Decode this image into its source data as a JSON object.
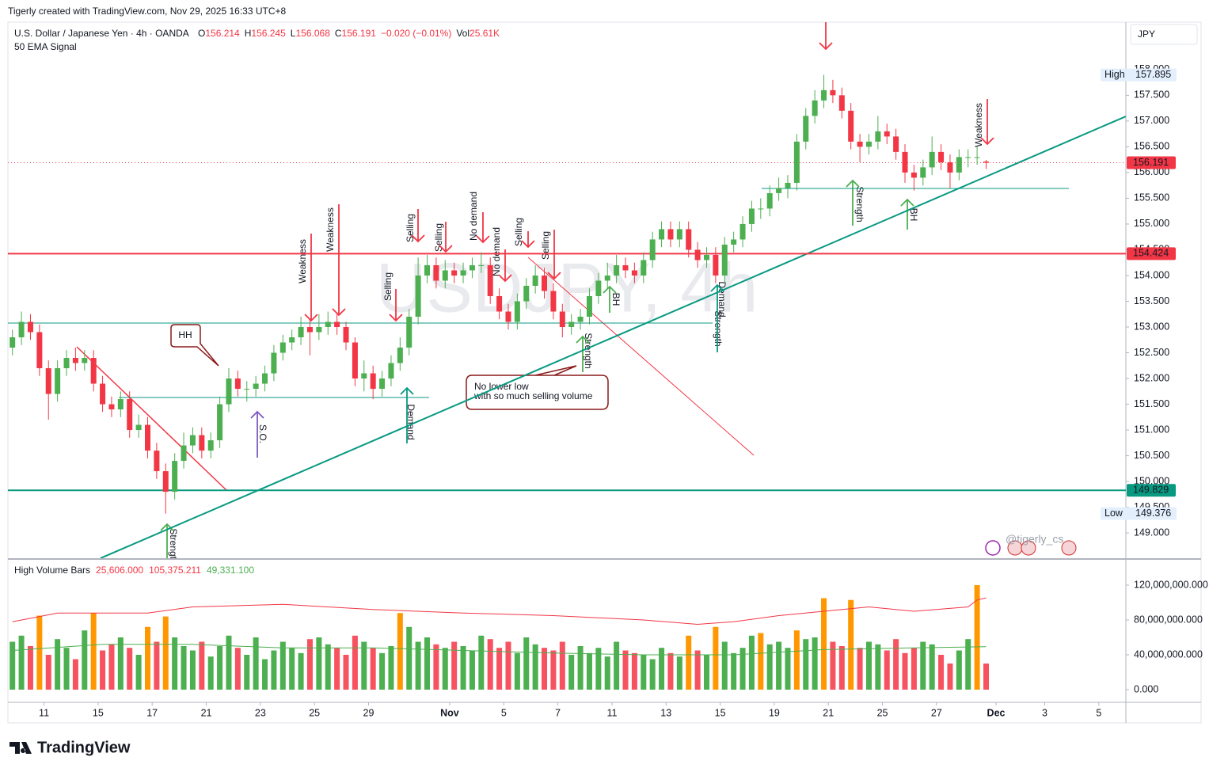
{
  "header": {
    "attribution": "Tigerly created with TradingView.com, Nov 29, 2025 16:33 UTC+8",
    "symbol": "U.S. Dollar / Japanese Yen · 4h · OANDA",
    "quote": [
      {
        "label": "O",
        "value": "156.214"
      },
      {
        "label": "H",
        "value": "156.245"
      },
      {
        "label": "L",
        "value": "156.068"
      },
      {
        "label": "C",
        "value": "156.191"
      }
    ],
    "change": "−0.020 (−0.01%)",
    "volume": {
      "label": "Vol",
      "value": "25.61K"
    },
    "indicator": "50 EMA Signal",
    "currency": "JPY"
  },
  "chart_data": [
    {
      "type": "candlestick",
      "watermark": "USDJPY, 4h",
      "up_color": "#4caf50",
      "down_color": "#f23645",
      "grid": false,
      "open": [
        152.6,
        152.8,
        153.1,
        152.9,
        152.2,
        151.7,
        152.2,
        152.4,
        152.3,
        152.4,
        151.9,
        151.5,
        151.4,
        151.6,
        151.0,
        151.1,
        150.6,
        150.2,
        149.8,
        150.4,
        150.7,
        150.9,
        150.6,
        150.8,
        151.5,
        152.0,
        151.8,
        151.8,
        151.9,
        152.1,
        152.5,
        152.7,
        152.8,
        153.0,
        152.9,
        153.0,
        153.1,
        153.0,
        152.7,
        152.0,
        152.1,
        151.8,
        152.0,
        152.3,
        152.6,
        153.2,
        154.0,
        154.2,
        153.9,
        154.1,
        154.0,
        154.1,
        154.2,
        154.2,
        153.6,
        153.3,
        153.1,
        153.5,
        153.8,
        154.0,
        153.7,
        153.3,
        153.0,
        153.1,
        153.2,
        153.6,
        153.9,
        154.0,
        154.2,
        154.1,
        154.0,
        154.3,
        154.7,
        154.9,
        154.7,
        154.9,
        154.5,
        154.3,
        154.4,
        154.0,
        154.6,
        154.7,
        155.0,
        155.3,
        155.3,
        155.6,
        155.7,
        155.8,
        156.6,
        157.1,
        157.4,
        157.6,
        157.5,
        157.2,
        156.6,
        156.5,
        156.6,
        156.8,
        156.7,
        156.4,
        156.0,
        155.9,
        156.1,
        156.4,
        156.2,
        156.0,
        156.3,
        156.3,
        156.214
      ],
      "high": [
        152.95,
        153.3,
        153.25,
        153.05,
        152.35,
        152.35,
        152.55,
        152.6,
        152.55,
        152.55,
        152.05,
        151.65,
        151.75,
        151.75,
        151.3,
        151.25,
        150.75,
        150.35,
        150.55,
        150.95,
        151.05,
        151.05,
        150.95,
        151.65,
        152.2,
        152.15,
        151.95,
        152.05,
        152.25,
        152.65,
        152.85,
        152.95,
        153.2,
        153.15,
        153.25,
        153.3,
        153.25,
        153.1,
        152.8,
        152.35,
        152.25,
        152.15,
        152.45,
        152.8,
        153.35,
        154.35,
        154.4,
        154.35,
        154.3,
        154.25,
        154.25,
        154.35,
        154.45,
        154.35,
        153.75,
        153.45,
        153.65,
        153.95,
        154.2,
        154.15,
        153.85,
        153.45,
        153.25,
        153.35,
        153.75,
        154.05,
        154.25,
        154.4,
        154.35,
        154.25,
        154.45,
        154.85,
        155.05,
        155.05,
        155.05,
        155.05,
        154.65,
        154.55,
        154.55,
        154.75,
        154.85,
        155.15,
        155.45,
        155.5,
        155.75,
        155.9,
        155.95,
        156.75,
        157.25,
        157.6,
        157.895,
        157.8,
        157.65,
        157.35,
        156.75,
        156.75,
        157.1,
        156.95,
        156.85,
        156.55,
        156.15,
        156.25,
        156.7,
        156.55,
        156.35,
        156.45,
        156.45,
        156.5,
        156.245
      ],
      "low": [
        152.45,
        152.65,
        152.75,
        152.05,
        151.2,
        151.55,
        152.05,
        152.15,
        152.15,
        151.75,
        151.35,
        151.25,
        151.25,
        150.85,
        150.85,
        150.45,
        150.05,
        149.376,
        149.65,
        150.25,
        150.55,
        150.45,
        150.45,
        150.65,
        151.35,
        151.65,
        151.55,
        151.65,
        151.75,
        151.95,
        152.35,
        152.55,
        152.65,
        152.45,
        152.75,
        152.85,
        152.85,
        152.55,
        151.85,
        151.75,
        151.6,
        151.65,
        151.85,
        152.15,
        152.45,
        153.05,
        153.85,
        153.75,
        153.75,
        153.85,
        153.85,
        153.95,
        154.05,
        153.45,
        153.15,
        152.95,
        152.95,
        153.35,
        153.65,
        153.55,
        153.15,
        152.8,
        152.85,
        152.95,
        153.05,
        153.45,
        153.75,
        153.85,
        153.95,
        153.85,
        153.85,
        154.15,
        154.55,
        154.55,
        154.55,
        154.35,
        154.15,
        154.15,
        153.85,
        153.85,
        154.45,
        154.55,
        154.85,
        155.1,
        155.15,
        155.45,
        155.5,
        155.65,
        156.45,
        156.95,
        157.25,
        157.35,
        157.05,
        156.45,
        156.2,
        156.35,
        156.45,
        156.55,
        156.25,
        155.8,
        155.65,
        155.75,
        155.95,
        156.05,
        155.7,
        155.85,
        156.1,
        156.15,
        156.068
      ],
      "close": [
        152.8,
        153.1,
        152.9,
        152.2,
        151.7,
        152.2,
        152.4,
        152.3,
        152.4,
        151.9,
        151.5,
        151.4,
        151.6,
        151.0,
        151.1,
        150.6,
        150.2,
        149.8,
        150.4,
        150.7,
        150.9,
        150.6,
        150.8,
        151.5,
        152.0,
        151.8,
        151.8,
        151.9,
        152.1,
        152.5,
        152.7,
        152.8,
        153.0,
        152.9,
        153.0,
        153.1,
        153.0,
        152.7,
        152.0,
        152.1,
        151.8,
        152.0,
        152.3,
        152.6,
        153.2,
        154.0,
        154.2,
        153.9,
        154.1,
        154.0,
        154.1,
        154.2,
        154.2,
        153.6,
        153.3,
        153.1,
        153.5,
        153.8,
        154.0,
        153.7,
        153.3,
        153.0,
        153.1,
        153.2,
        153.6,
        153.9,
        154.0,
        154.2,
        154.1,
        154.0,
        154.3,
        154.7,
        154.9,
        154.7,
        154.9,
        154.5,
        154.3,
        154.4,
        154.0,
        154.6,
        154.7,
        155.0,
        155.3,
        155.3,
        155.6,
        155.7,
        155.8,
        156.6,
        157.1,
        157.4,
        157.6,
        157.5,
        157.2,
        156.6,
        156.5,
        156.6,
        156.8,
        156.7,
        156.4,
        156.0,
        155.9,
        156.1,
        156.4,
        156.2,
        156.0,
        156.3,
        156.3,
        156.3,
        156.191
      ],
      "xlim": [
        0,
        124
      ],
      "xticks": [
        {
          "value": 4,
          "label": "11"
        },
        {
          "value": 10,
          "label": "15"
        },
        {
          "value": 16,
          "label": "17"
        },
        {
          "value": 22,
          "label": "21"
        },
        {
          "value": 28,
          "label": "23"
        },
        {
          "value": 34,
          "label": "25"
        },
        {
          "value": 40,
          "label": "29"
        },
        {
          "value": 49,
          "label": "Nov"
        },
        {
          "value": 55,
          "label": "5"
        },
        {
          "value": 61,
          "label": "7"
        },
        {
          "value": 67,
          "label": "11"
        },
        {
          "value": 73,
          "label": "13"
        },
        {
          "value": 79,
          "label": "15"
        },
        {
          "value": 85,
          "label": "19"
        },
        {
          "value": 91,
          "label": "21"
        },
        {
          "value": 97,
          "label": "25"
        },
        {
          "value": 103,
          "label": "27"
        },
        {
          "value": 109.6,
          "label": "Dec"
        },
        {
          "value": 115,
          "label": "3"
        },
        {
          "value": 121,
          "label": "5"
        }
      ],
      "ylim": [
        148.51,
        158.92
      ],
      "yticks": [
        {
          "value": 149,
          "label": "149.000"
        },
        {
          "value": 149.5,
          "label": "149.500"
        },
        {
          "value": 150,
          "label": "150.000"
        },
        {
          "value": 150.5,
          "label": "150.500"
        },
        {
          "value": 151,
          "label": "151.000"
        },
        {
          "value": 151.5,
          "label": "151.500"
        },
        {
          "value": 152,
          "label": "152.000"
        },
        {
          "value": 152.5,
          "label": "152.500"
        },
        {
          "value": 153,
          "label": "153.000"
        },
        {
          "value": 153.5,
          "label": "153.500"
        },
        {
          "value": 154,
          "label": "154.000"
        },
        {
          "value": 154.5,
          "label": "154.500"
        },
        {
          "value": 155,
          "label": "155.000"
        },
        {
          "value": 155.5,
          "label": "155.500"
        },
        {
          "value": 156,
          "label": "156.000"
        },
        {
          "value": 156.5,
          "label": "156.500"
        },
        {
          "value": 157,
          "label": "157.000"
        },
        {
          "value": 157.5,
          "label": "157.500"
        },
        {
          "value": 158,
          "label": "158.000"
        }
      ],
      "levels": [
        {
          "value": 154.424,
          "color": "#f23645"
        },
        {
          "value": 149.829,
          "color": "#089981"
        }
      ],
      "last_price": 156.191,
      "last_color": "#f23645",
      "high_marker": {
        "label": "High",
        "value": 157.895
      },
      "low_marker": {
        "label": "Low",
        "value": 149.376
      }
    },
    {
      "type": "bar",
      "title": "High Volume Bars",
      "legend_values": [
        "25,606.000",
        "105,375.211",
        "49,331.100"
      ],
      "legend_colors": [
        "#f23645",
        "#f23645",
        "#4caf50"
      ],
      "up_color": "#4caf50",
      "down_color": "#f7525f",
      "highlight_color": "#ff9800",
      "highlight_indices": [
        3,
        9,
        15,
        17,
        43,
        75,
        78,
        83,
        87,
        90,
        93,
        107
      ],
      "values": [
        55000000.0,
        62000000.0,
        50000000.0,
        85000000.0,
        40000000.0,
        58000000.0,
        48000000.0,
        35000000.0,
        68000000.0,
        88000000.0,
        45000000.0,
        52000000.0,
        60000000.0,
        48000000.0,
        40000000.0,
        72000000.0,
        55000000.0,
        84000000.0,
        60000000.0,
        50000000.0,
        45000000.0,
        55000000.0,
        38000000.0,
        50000000.0,
        62000000.0,
        48000000.0,
        40000000.0,
        60000000.0,
        35000000.0,
        45000000.0,
        55000000.0,
        48000000.0,
        42000000.0,
        58000000.0,
        60000000.0,
        52000000.0,
        48000000.0,
        40000000.0,
        62000000.0,
        55000000.0,
        48000000.0,
        42000000.0,
        50000000.0,
        88000000.0,
        72000000.0,
        55000000.0,
        60000000.0,
        52000000.0,
        48000000.0,
        55000000.0,
        50000000.0,
        45000000.0,
        62000000.0,
        58000000.0,
        48000000.0,
        55000000.0,
        42000000.0,
        60000000.0,
        52000000.0,
        48000000.0,
        45000000.0,
        55000000.0,
        40000000.0,
        50000000.0,
        42000000.0,
        48000000.0,
        38000000.0,
        55000000.0,
        45000000.0,
        42000000.0,
        40000000.0,
        35000000.0,
        48000000.0,
        42000000.0,
        38000000.0,
        62000000.0,
        45000000.0,
        40000000.0,
        72000000.0,
        55000000.0,
        42000000.0,
        48000000.0,
        62000000.0,
        65000000.0,
        52000000.0,
        55000000.0,
        48000000.0,
        68000000.0,
        58000000.0,
        60000000.0,
        105000000.0,
        55000000.0,
        50000000.0,
        103000000.0,
        48000000.0,
        55000000.0,
        52000000.0,
        45000000.0,
        58000000.0,
        42000000.0,
        48000000.0,
        55000000.0,
        52000000.0,
        40000000.0,
        30000000.0,
        45000000.0,
        58000000.0,
        120000000.0,
        30000000.0
      ],
      "lines": [
        {
          "color": "#f23645",
          "x": [
            0.5,
            5.5,
            15.5,
            20.5,
            30.5,
            40.5,
            50.5,
            60.5,
            70.5,
            76.5,
            80.5,
            85.5,
            90.5,
            95.5,
            100.5,
            106.5,
            107.5,
            108.5
          ],
          "values": [
            78000000.0,
            88000000.0,
            88000000.0,
            95000000.0,
            98000000.0,
            92000000.0,
            88000000.0,
            85000000.0,
            80000000.0,
            75000000.0,
            78000000.0,
            85000000.0,
            90000000.0,
            95000000.0,
            90000000.0,
            95000000.0,
            103000000.0,
            105375211
          ]
        },
        {
          "color": "#4caf50",
          "x": [
            0.5,
            10.5,
            20.5,
            30.5,
            40.5,
            50.5,
            60.5,
            70.5,
            80.5,
            90.5,
            100.5,
            108.5
          ],
          "values": [
            45000000.0,
            52000000.0,
            52000000.0,
            48000000.0,
            48000000.0,
            45000000.0,
            42000000.0,
            40000000.0,
            40000000.0,
            46000000.0,
            48000000.0,
            49331100
          ]
        }
      ],
      "ylim": [
        -14545000,
        148180000
      ],
      "yticks": [
        {
          "value": 0,
          "label": "0.000"
        },
        {
          "value": 40000000,
          "label": "40,000,000.000"
        },
        {
          "value": 80000000,
          "label": "80,000,000.000"
        },
        {
          "value": 120000000,
          "label": "120,000,000.000"
        }
      ]
    }
  ],
  "annotations": {
    "labels": [
      "Weakness",
      "Weakness",
      "Selling",
      "Selling",
      "Selling",
      "No demand",
      "No demand",
      "Selling",
      "Selling",
      "Weakness",
      "Strength",
      "Demand",
      "Strength",
      "BH",
      "Demand",
      "Strength",
      "Strength",
      "BH",
      "S.O."
    ],
    "callout": "HH",
    "note": [
      "No lower low",
      "with so much selling volume"
    ],
    "handle": "@tigerly_cs"
  },
  "footer": {
    "logo": "TradingView"
  }
}
